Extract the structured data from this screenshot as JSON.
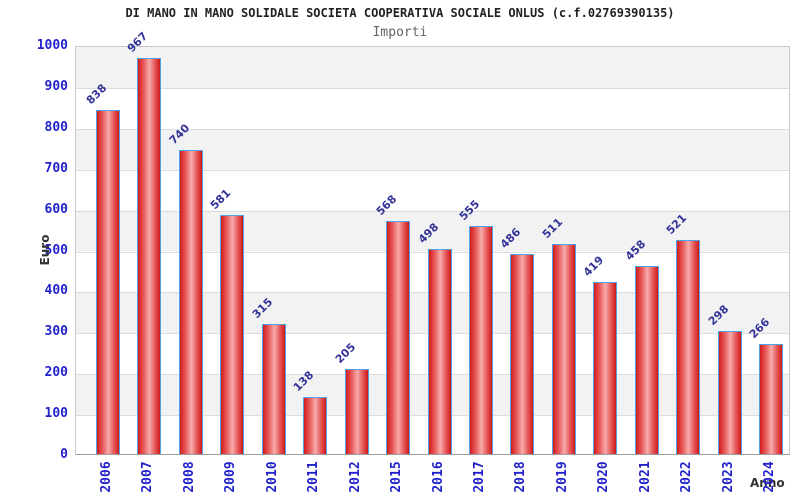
{
  "header": {
    "title": "DI MANO IN MANO SOLIDALE SOCIETA COOPERATIVA SOCIALE ONLUS (c.f.02769390135)",
    "subtitle": "Importi"
  },
  "chart_data": {
    "type": "bar",
    "title": "DI MANO IN MANO SOLIDALE SOCIETA COOPERATIVA SOCIALE ONLUS (c.f.02769390135)",
    "subtitle": "Importi",
    "xlabel": "Anno",
    "ylabel": "Euro",
    "categories": [
      "2006",
      "2007",
      "2008",
      "2009",
      "2010",
      "2011",
      "2012",
      "2015",
      "2016",
      "2017",
      "2018",
      "2019",
      "2020",
      "2021",
      "2022",
      "2023",
      "2024"
    ],
    "values": [
      838,
      967,
      740,
      581,
      315,
      138,
      205,
      568,
      498,
      555,
      486,
      511,
      419,
      458,
      521,
      298,
      266
    ],
    "ylim": [
      0,
      1000
    ],
    "ytick_step": 100,
    "yticks": [
      0,
      100,
      200,
      300,
      400,
      500,
      600,
      700,
      800,
      900,
      1000
    ],
    "grid": true,
    "legend": "none",
    "layout_hints": {
      "value_labels": "rotated -45deg above each bar",
      "x_tick_labels": "rotated -90deg below axis",
      "background_bands": "alternating gray/white per 100 units, gray at top"
    },
    "colors": {
      "bar_edge_fill": "#d31c1c",
      "bar_center_fill": "#f7abab",
      "bar_border": "#4da3e8",
      "axis_tick_label": "#2222cc",
      "value_label": "#333399",
      "band_gray": "#f2f2f2",
      "gridline": "#dcdcdc",
      "axis_title": "#333333",
      "title": "#222222",
      "subtitle": "#666666"
    }
  }
}
